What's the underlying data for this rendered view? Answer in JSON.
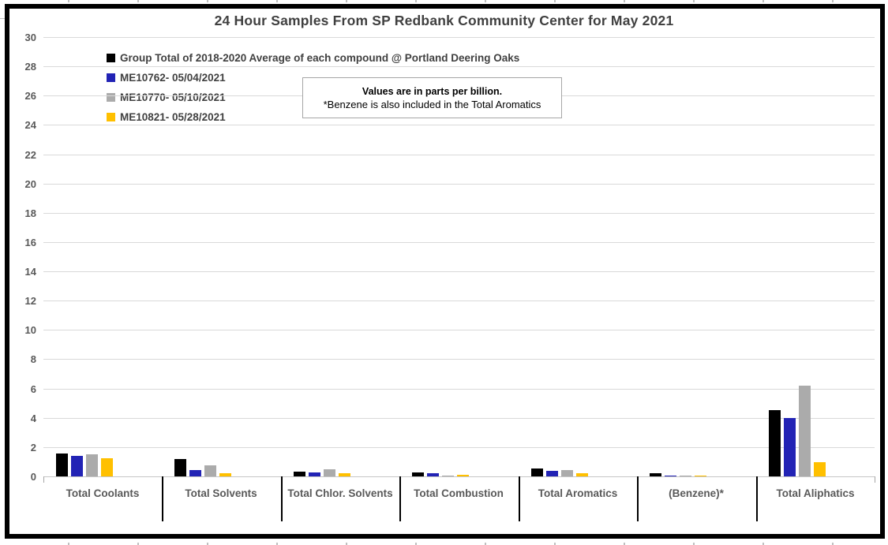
{
  "chart_data": {
    "type": "bar",
    "title": "24 Hour Samples From SP Redbank Community Center for May 2021",
    "categories": [
      "Total Coolants",
      "Total Solvents",
      "Total Chlor. Solvents",
      "Total Combustion",
      "Total Aromatics",
      "(Benzene)*",
      "Total Aliphatics"
    ],
    "series": [
      {
        "name": "Group Total of 2018-2020 Average of each compound @ Portland Deering Oaks",
        "color": "#000000",
        "values": [
          1.55,
          1.2,
          0.35,
          0.25,
          0.55,
          0.2,
          4.5
        ]
      },
      {
        "name": "ME10762- 05/04/2021",
        "color": "#2223B5",
        "values": [
          1.4,
          0.45,
          0.25,
          0.2,
          0.4,
          0.07,
          4.0
        ]
      },
      {
        "name": "ME10770- 05/10/2021",
        "color": "#ABABAB",
        "values": [
          1.5,
          0.75,
          0.5,
          0.05,
          0.45,
          0.05,
          6.2
        ]
      },
      {
        "name": "ME10821- 05/28/2021",
        "color": "#FFC000",
        "values": [
          1.25,
          0.2,
          0.2,
          0.1,
          0.2,
          0.02,
          0.95
        ]
      }
    ],
    "xlabel": "",
    "ylabel": "",
    "ylim": [
      0,
      30
    ],
    "ytick_step": 2,
    "grid": true,
    "legend_position": "top-left",
    "annotation": {
      "line1": "Values are in parts per billion.",
      "line2": "*Benzene is also included in the Total Aromatics"
    }
  },
  "colors": {
    "title_text": "#404040",
    "axis_text": "#595959",
    "gridline": "#D9D9D9",
    "chart_border": "#000000",
    "annotation_border": "#A6A6A6"
  }
}
